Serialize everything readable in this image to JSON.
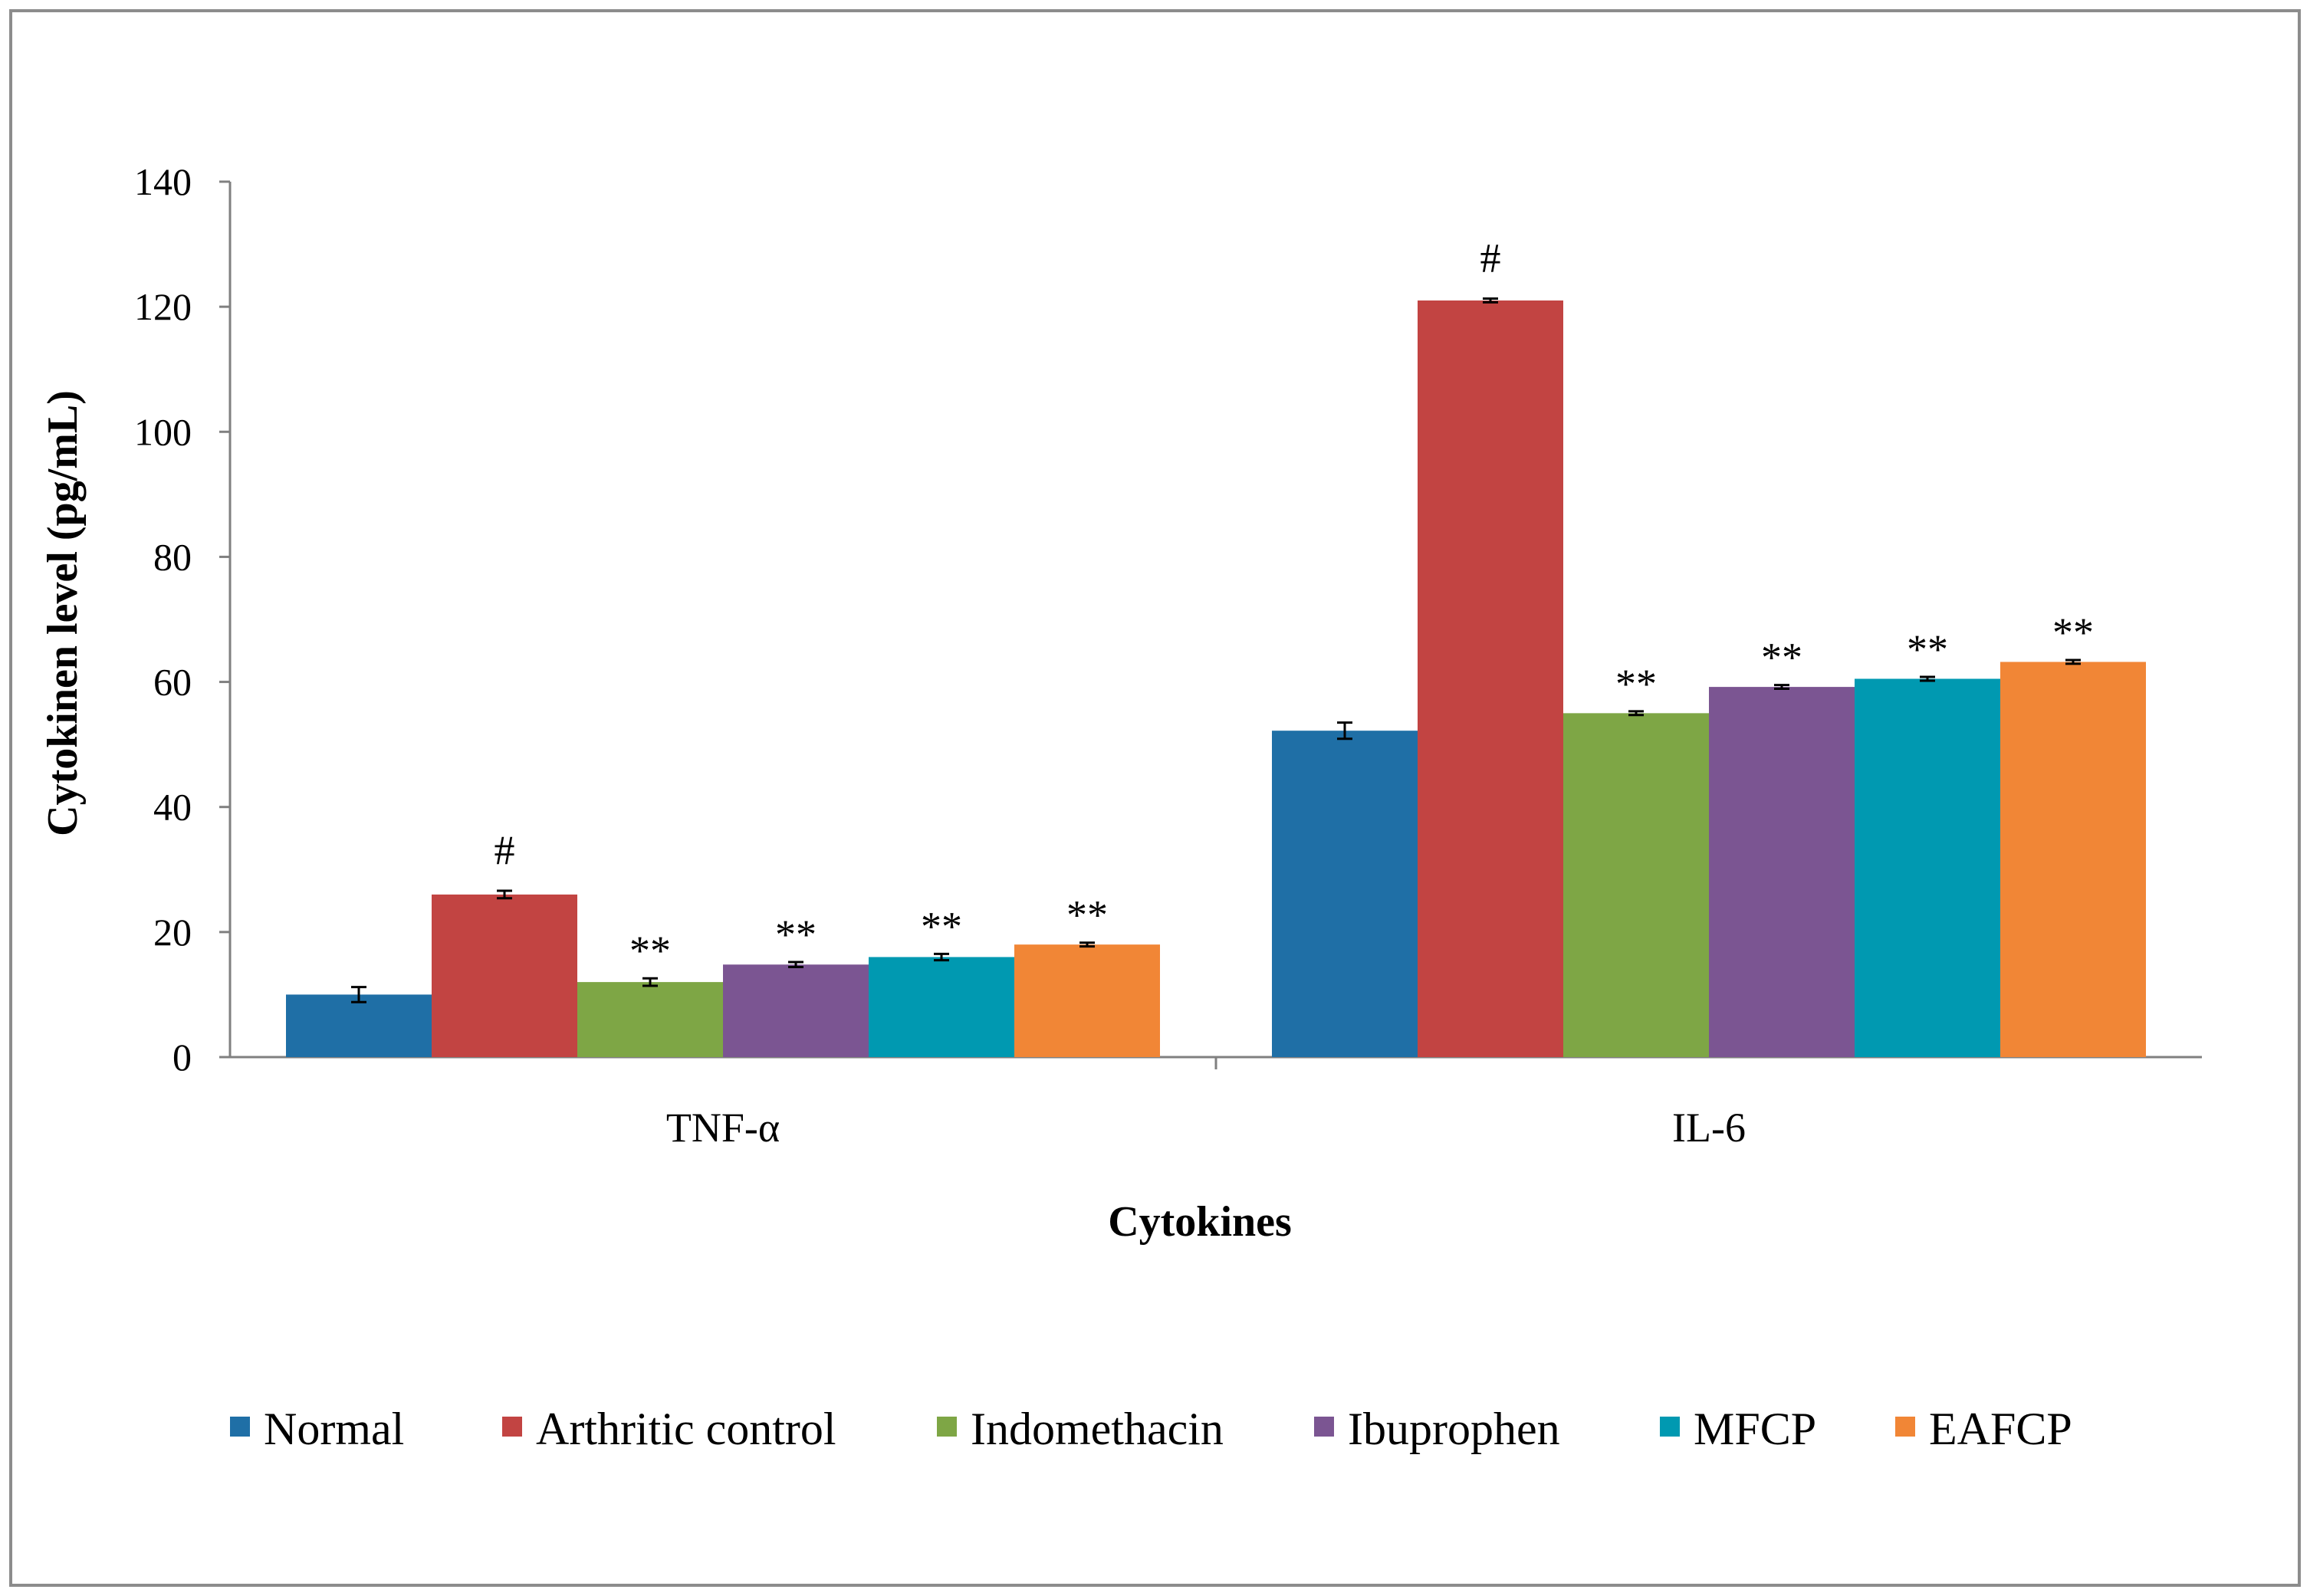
{
  "chart_data": {
    "type": "bar",
    "title": "",
    "xlabel": "Cytokines",
    "ylabel": "Cytokinen level (pg/mL)",
    "categories": [
      "TNF-α",
      "IL-6"
    ],
    "ylim": [
      0,
      140
    ],
    "yticks": [
      0,
      20,
      40,
      60,
      80,
      100,
      120,
      140
    ],
    "grid": false,
    "legend_position": "bottom",
    "series": [
      {
        "name": "Normal",
        "color": "#1f6fa6",
        "values": [
          10,
          52.2
        ],
        "errors": [
          1.2,
          1.3
        ],
        "annotations": [
          "",
          ""
        ]
      },
      {
        "name": "Arthritic control",
        "color": "#c24442",
        "values": [
          26,
          121
        ],
        "errors": [
          0.6,
          0.3
        ],
        "annotations": [
          "#",
          "#"
        ]
      },
      {
        "name": "Indomethacin",
        "color": "#7ea645",
        "values": [
          12,
          55
        ],
        "errors": [
          0.6,
          0.3
        ],
        "annotations": [
          "**",
          "**"
        ]
      },
      {
        "name": "Ibuprophen",
        "color": "#7b5592",
        "values": [
          14.8,
          59.2
        ],
        "errors": [
          0.4,
          0.3
        ],
        "annotations": [
          "**",
          "**"
        ]
      },
      {
        "name": "MFCP",
        "color": "#0099b1",
        "values": [
          16,
          60.5
        ],
        "errors": [
          0.5,
          0.3
        ],
        "annotations": [
          "**",
          "**"
        ]
      },
      {
        "name": "EAFCP",
        "color": "#f18636",
        "values": [
          18,
          63.2
        ],
        "errors": [
          0.3,
          0.3
        ],
        "annotations": [
          "**",
          "**"
        ]
      }
    ]
  }
}
